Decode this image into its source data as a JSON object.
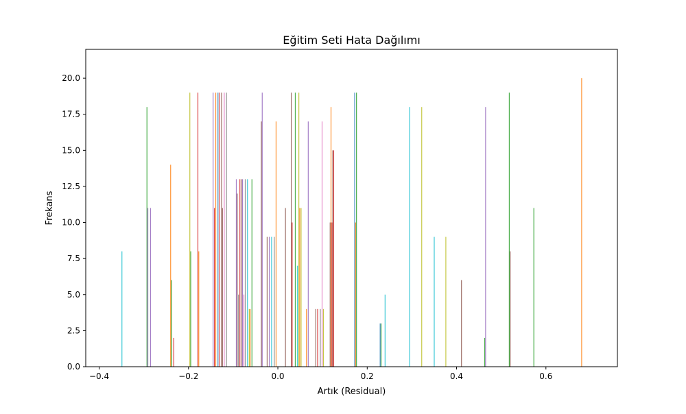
{
  "chart_data": {
    "type": "bar",
    "title": "Eğitim Seti Hata Dağılımı",
    "xlabel": "Artık (Residual)",
    "ylabel": "Frekans",
    "xlim": [
      -0.43,
      0.76
    ],
    "ylim": [
      0,
      22
    ],
    "xticks": [
      -0.4,
      -0.2,
      0.0,
      0.2,
      0.4,
      0.6
    ],
    "xtick_labels": [
      "−0.4",
      "−0.2",
      "0.0",
      "0.2",
      "0.4",
      "0.6"
    ],
    "yticks": [
      0,
      2.5,
      5,
      7.5,
      10,
      12.5,
      15,
      17.5,
      20
    ],
    "ytick_labels": [
      "0.0",
      "2.5",
      "5.0",
      "7.5",
      "10.0",
      "12.5",
      "15.0",
      "17.5",
      "20.0"
    ],
    "grid": false,
    "bars": [
      {
        "x": -0.349,
        "y": 8,
        "color": "#17becf"
      },
      {
        "x": -0.293,
        "y": 18,
        "color": "#2ca02c"
      },
      {
        "x": -0.291,
        "y": 11,
        "color": "#9467bd"
      },
      {
        "x": -0.285,
        "y": 11,
        "color": "#9467bd"
      },
      {
        "x": -0.24,
        "y": 14,
        "color": "#ff7f0e"
      },
      {
        "x": -0.238,
        "y": 6,
        "color": "#2ca02c"
      },
      {
        "x": -0.233,
        "y": 2,
        "color": "#d62728"
      },
      {
        "x": -0.197,
        "y": 19,
        "color": "#bcbd22"
      },
      {
        "x": -0.195,
        "y": 8,
        "color": "#2ca02c"
      },
      {
        "x": -0.179,
        "y": 19,
        "color": "#d62728"
      },
      {
        "x": -0.177,
        "y": 8,
        "color": "#ff7f0e"
      },
      {
        "x": -0.145,
        "y": 19,
        "color": "#9467bd"
      },
      {
        "x": -0.142,
        "y": 11,
        "color": "#d62728"
      },
      {
        "x": -0.139,
        "y": 19,
        "color": "#ff7f0e"
      },
      {
        "x": -0.134,
        "y": 19,
        "color": "#1f77b4"
      },
      {
        "x": -0.13,
        "y": 19,
        "color": "#d62728"
      },
      {
        "x": -0.126,
        "y": 19,
        "color": "#8c564b"
      },
      {
        "x": -0.124,
        "y": 11,
        "color": "#8c564b"
      },
      {
        "x": -0.12,
        "y": 19,
        "color": "#e377c2"
      },
      {
        "x": -0.115,
        "y": 19,
        "color": "#7f7f7f"
      },
      {
        "x": -0.093,
        "y": 13,
        "color": "#9467bd"
      },
      {
        "x": -0.091,
        "y": 12,
        "color": "#8c564b"
      },
      {
        "x": -0.088,
        "y": 5,
        "color": "#7f7f7f"
      },
      {
        "x": -0.085,
        "y": 13,
        "color": "#d62728"
      },
      {
        "x": -0.082,
        "y": 13,
        "color": "#8c564b"
      },
      {
        "x": -0.079,
        "y": 13,
        "color": "#9467bd"
      },
      {
        "x": -0.076,
        "y": 5,
        "color": "#e377c2"
      },
      {
        "x": -0.073,
        "y": 13,
        "color": "#7f7f7f"
      },
      {
        "x": -0.068,
        "y": 13,
        "color": "#17becf"
      },
      {
        "x": -0.064,
        "y": 4,
        "color": "#bcbd22"
      },
      {
        "x": -0.062,
        "y": 4,
        "color": "#ff7f0e"
      },
      {
        "x": -0.058,
        "y": 13,
        "color": "#2ca02c"
      },
      {
        "x": -0.037,
        "y": 17,
        "color": "#8c564b"
      },
      {
        "x": -0.035,
        "y": 19,
        "color": "#9467bd"
      },
      {
        "x": -0.024,
        "y": 9,
        "color": "#8c564b"
      },
      {
        "x": -0.019,
        "y": 9,
        "color": "#9467bd"
      },
      {
        "x": -0.014,
        "y": 9,
        "color": "#17becf"
      },
      {
        "x": -0.008,
        "y": 9,
        "color": "#7f7f7f"
      },
      {
        "x": -0.004,
        "y": 17,
        "color": "#ff7f0e"
      },
      {
        "x": 0.017,
        "y": 11,
        "color": "#8c564b"
      },
      {
        "x": 0.03,
        "y": 19,
        "color": "#8c564b"
      },
      {
        "x": 0.032,
        "y": 10,
        "color": "#d62728"
      },
      {
        "x": 0.039,
        "y": 19,
        "color": "#2ca02c"
      },
      {
        "x": 0.044,
        "y": 7,
        "color": "#17becf"
      },
      {
        "x": 0.047,
        "y": 19,
        "color": "#bcbd22"
      },
      {
        "x": 0.049,
        "y": 11,
        "color": "#ff7f0e"
      },
      {
        "x": 0.052,
        "y": 11,
        "color": "#bcbd22"
      },
      {
        "x": 0.064,
        "y": 4,
        "color": "#ff7f0e"
      },
      {
        "x": 0.068,
        "y": 17,
        "color": "#9467bd"
      },
      {
        "x": 0.085,
        "y": 4,
        "color": "#8c564b"
      },
      {
        "x": 0.089,
        "y": 4,
        "color": "#d62728"
      },
      {
        "x": 0.095,
        "y": 4,
        "color": "#7f7f7f"
      },
      {
        "x": 0.099,
        "y": 17,
        "color": "#e377c2"
      },
      {
        "x": 0.102,
        "y": 4,
        "color": "#bcbd22"
      },
      {
        "x": 0.117,
        "y": 10,
        "color": "#8c564b"
      },
      {
        "x": 0.119,
        "y": 18,
        "color": "#ff7f0e"
      },
      {
        "x": 0.121,
        "y": 10,
        "color": "#d62728"
      },
      {
        "x": 0.123,
        "y": 15,
        "color": "#8c564b"
      },
      {
        "x": 0.125,
        "y": 15,
        "color": "#d62728"
      },
      {
        "x": 0.172,
        "y": 19,
        "color": "#1f77b4"
      },
      {
        "x": 0.174,
        "y": 10,
        "color": "#ff7f0e"
      },
      {
        "x": 0.176,
        "y": 19,
        "color": "#2ca02c"
      },
      {
        "x": 0.229,
        "y": 3,
        "color": "#1f77b4"
      },
      {
        "x": 0.231,
        "y": 3,
        "color": "#2ca02c"
      },
      {
        "x": 0.24,
        "y": 5,
        "color": "#17becf"
      },
      {
        "x": 0.295,
        "y": 18,
        "color": "#17becf"
      },
      {
        "x": 0.322,
        "y": 18,
        "color": "#bcbd22"
      },
      {
        "x": 0.35,
        "y": 9,
        "color": "#17becf"
      },
      {
        "x": 0.376,
        "y": 9,
        "color": "#bcbd22"
      },
      {
        "x": 0.411,
        "y": 6,
        "color": "#8c564b"
      },
      {
        "x": 0.463,
        "y": 2,
        "color": "#2ca02c"
      },
      {
        "x": 0.465,
        "y": 18,
        "color": "#9467bd"
      },
      {
        "x": 0.518,
        "y": 19,
        "color": "#2ca02c"
      },
      {
        "x": 0.52,
        "y": 8,
        "color": "#8c564b"
      },
      {
        "x": 0.573,
        "y": 11,
        "color": "#2ca02c"
      },
      {
        "x": 0.68,
        "y": 20,
        "color": "#ff7f0e"
      }
    ]
  }
}
